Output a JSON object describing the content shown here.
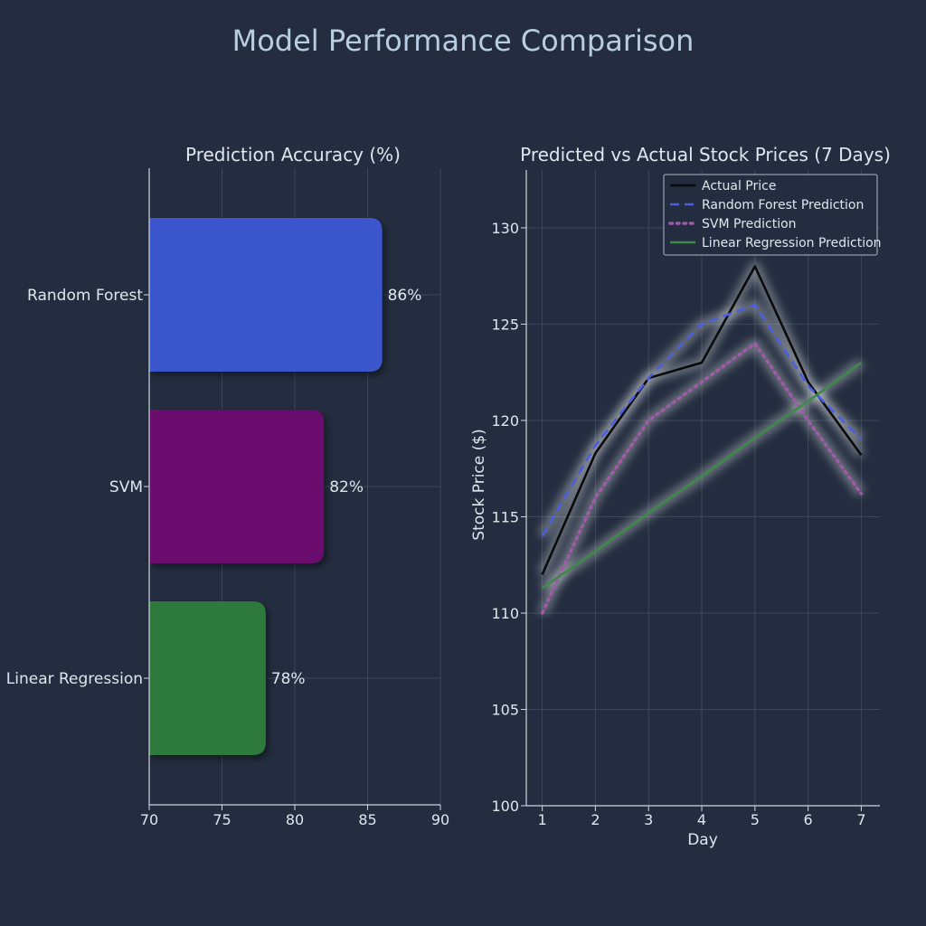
{
  "figure": {
    "title": "Model Performance Comparison",
    "background": "#232d3f",
    "text_color": "#dfe6ee",
    "title_color": "#b9cde2",
    "grid_color": "#3c485a",
    "axis_color": "#cfd6de"
  },
  "chart_data": [
    {
      "type": "bar",
      "orientation": "horizontal",
      "title": "Prediction Accuracy (%)",
      "categories": [
        "Random Forest",
        "SVM",
        "Linear Regression"
      ],
      "values": [
        86,
        82,
        78
      ],
      "value_labels": [
        "86%",
        "82%",
        "78%"
      ],
      "colors": [
        "#3a55cc",
        "#6b0f6e",
        "#2e7a3c"
      ],
      "xlim": [
        70,
        90
      ],
      "xticks": [
        70,
        75,
        80,
        85,
        90
      ],
      "xtick_labels": [
        "70",
        "75",
        "80",
        "85",
        "90"
      ],
      "xlabel": "",
      "ylabel": "",
      "grid": true
    },
    {
      "type": "line",
      "title": "Predicted vs Actual Stock Prices (7 Days)",
      "xlabel": "Day",
      "ylabel": "Stock Price ($)",
      "x": [
        1,
        2,
        3,
        4,
        5,
        6,
        7
      ],
      "xticks": [
        1,
        2,
        3,
        4,
        5,
        6,
        7
      ],
      "xtick_labels": [
        "1",
        "2",
        "3",
        "4",
        "5",
        "6",
        "7"
      ],
      "xlim": [
        0.7,
        7.35
      ],
      "ylim": [
        100,
        133
      ],
      "yticks": [
        100,
        105,
        110,
        115,
        120,
        125,
        130
      ],
      "ytick_labels": [
        "100",
        "105",
        "110",
        "115",
        "120",
        "125",
        "130"
      ],
      "grid": true,
      "legend_position": "top-right",
      "series": [
        {
          "name": "Actual Price",
          "values": [
            112,
            118.3,
            122.2,
            123,
            128,
            122,
            118.2
          ],
          "color": "#0a0a0a",
          "style": "solid"
        },
        {
          "name": "Random Forest Prediction",
          "values": [
            114,
            118.7,
            122.2,
            125,
            126,
            121.8,
            119
          ],
          "color": "#4a5fe0",
          "style": "dashed"
        },
        {
          "name": "SVM Prediction",
          "values": [
            110,
            116,
            120,
            122,
            124,
            120,
            116.2
          ],
          "color": "#a05aa8",
          "style": "dotted"
        },
        {
          "name": "Linear Regression Prediction",
          "values": [
            111.3,
            113.2,
            115.2,
            117.1,
            119.1,
            121,
            123
          ],
          "color": "#3c8a48",
          "style": "solid"
        }
      ]
    }
  ]
}
